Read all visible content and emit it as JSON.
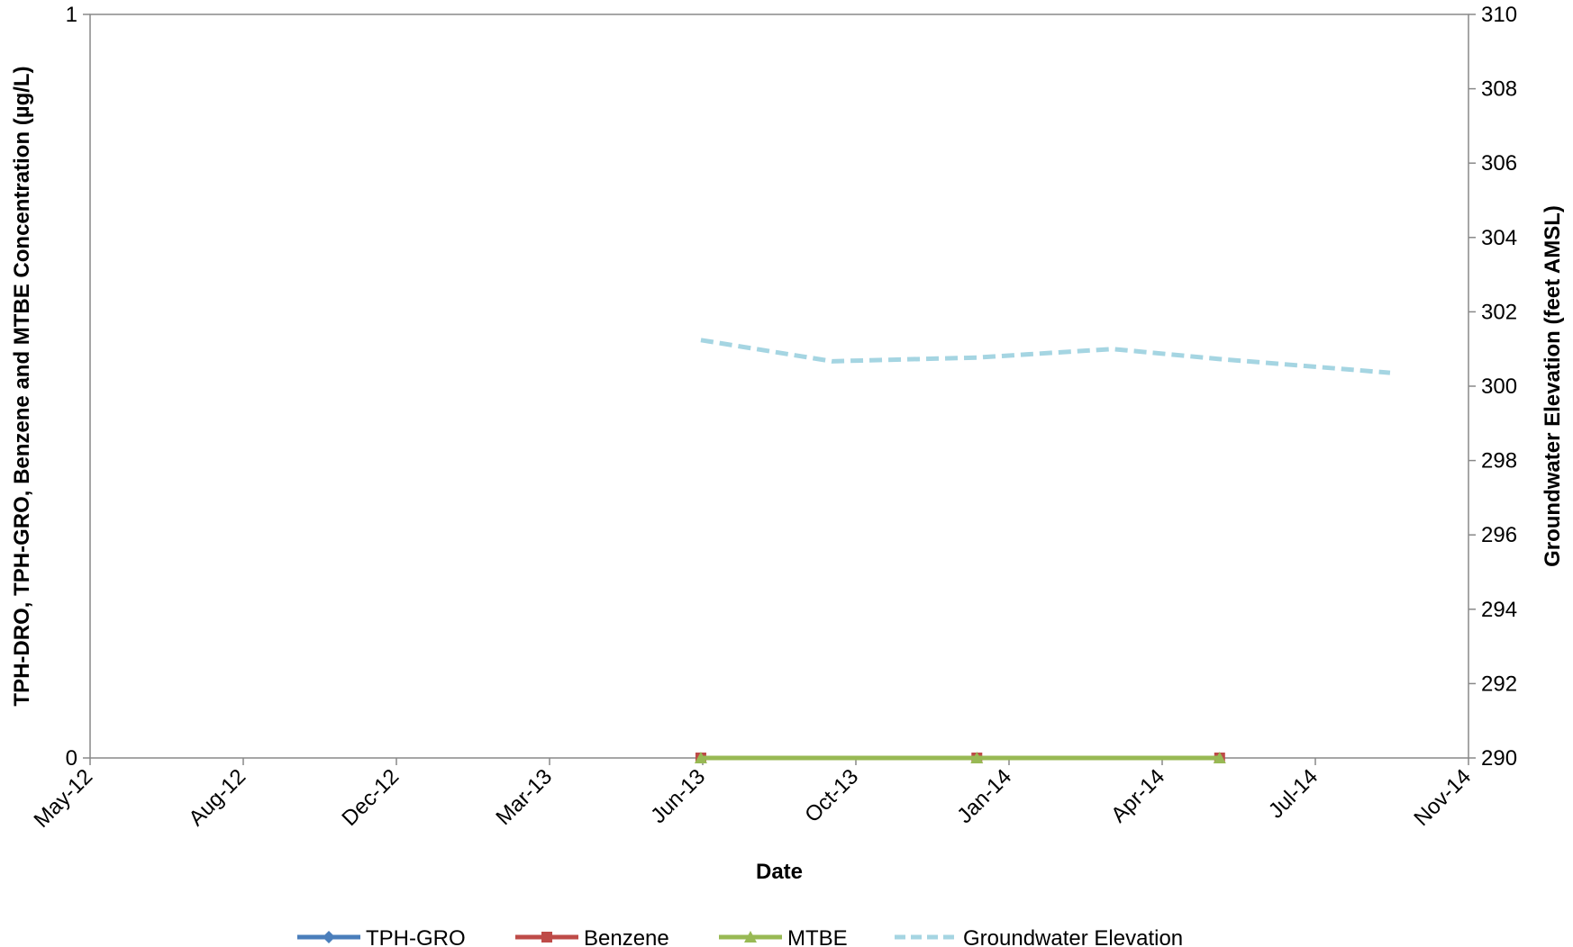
{
  "chart_data": {
    "type": "line",
    "xlabel": "Date",
    "ylabel_left": "TPH-DRO, TPH-GRO, Benzene and MTBE Concentration (µg/L)",
    "ylabel_right": "Groundwater Elevation (feet AMSL)",
    "x_tick_labels": [
      "May-12",
      "Aug-12",
      "Dec-12",
      "Mar-13",
      "Jun-13",
      "Oct-13",
      "Jan-14",
      "Apr-14",
      "Jul-14",
      "Nov-14"
    ],
    "x_range": [
      "2012-05-01",
      "2014-11-01"
    ],
    "y_left_range": [
      0,
      1
    ],
    "y_left_ticks": [
      0,
      1
    ],
    "y_right_range": [
      290,
      310
    ],
    "y_right_ticks": [
      290,
      292,
      294,
      296,
      298,
      300,
      302,
      304,
      306,
      308,
      310
    ],
    "grid": false,
    "legend_position": "bottom",
    "series": [
      {
        "name": "TPH-GRO",
        "axis": "left",
        "color": "#4a7ebb",
        "marker": "diamond",
        "dash": "solid",
        "points": []
      },
      {
        "name": "Benzene",
        "axis": "left",
        "color": "#be4b48",
        "marker": "square",
        "dash": "solid",
        "points": [
          {
            "x": "2013-06-10",
            "y": 0
          },
          {
            "x": "2013-12-10",
            "y": 0
          },
          {
            "x": "2014-05-20",
            "y": 0
          }
        ]
      },
      {
        "name": "MTBE",
        "axis": "left",
        "color": "#98b954",
        "marker": "triangle",
        "dash": "solid",
        "points": [
          {
            "x": "2013-06-10",
            "y": 0
          },
          {
            "x": "2013-12-10",
            "y": 0
          },
          {
            "x": "2014-05-20",
            "y": 0
          }
        ]
      },
      {
        "name": "Groundwater Elevation",
        "axis": "right",
        "color": "#a5d5e2",
        "marker": "none",
        "dash": "dashed",
        "points": [
          {
            "x": "2013-06-10",
            "y": 301.24
          },
          {
            "x": "2013-09-05",
            "y": 300.67
          },
          {
            "x": "2013-12-10",
            "y": 300.77
          },
          {
            "x": "2014-03-10",
            "y": 301.0
          },
          {
            "x": "2014-05-20",
            "y": 300.73
          },
          {
            "x": "2014-09-10",
            "y": 300.36
          }
        ]
      }
    ]
  }
}
